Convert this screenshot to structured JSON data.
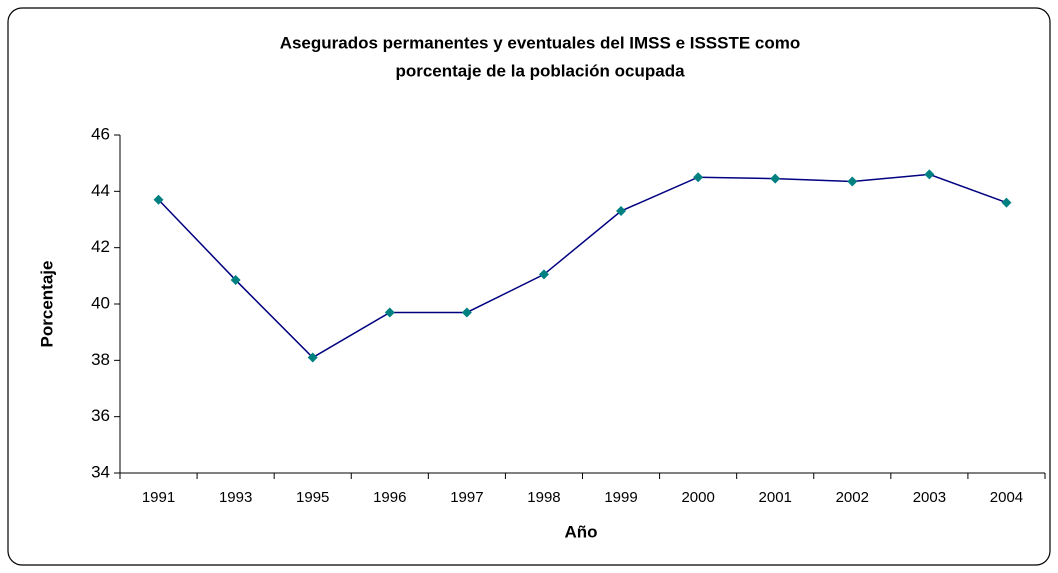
{
  "chart_data": {
    "type": "line",
    "title": [
      "Asegurados permanentes y eventuales del IMSS e ISSSTE como",
      "porcentaje de la población ocupada"
    ],
    "xlabel": "Año",
    "ylabel": "Porcentaje",
    "categories": [
      "1991",
      "1993",
      "1995",
      "1996",
      "1997",
      "1998",
      "1999",
      "2000",
      "2001",
      "2002",
      "2003",
      "2004"
    ],
    "values": [
      43.7,
      40.85,
      38.1,
      39.7,
      39.7,
      41.05,
      43.3,
      44.5,
      44.45,
      44.35,
      44.6,
      43.6
    ],
    "color": "#000080",
    "marker_color": "#008080",
    "ylim": [
      34,
      46
    ],
    "yticks": [
      34,
      36,
      38,
      40,
      42,
      44,
      46
    ],
    "grid": false
  }
}
